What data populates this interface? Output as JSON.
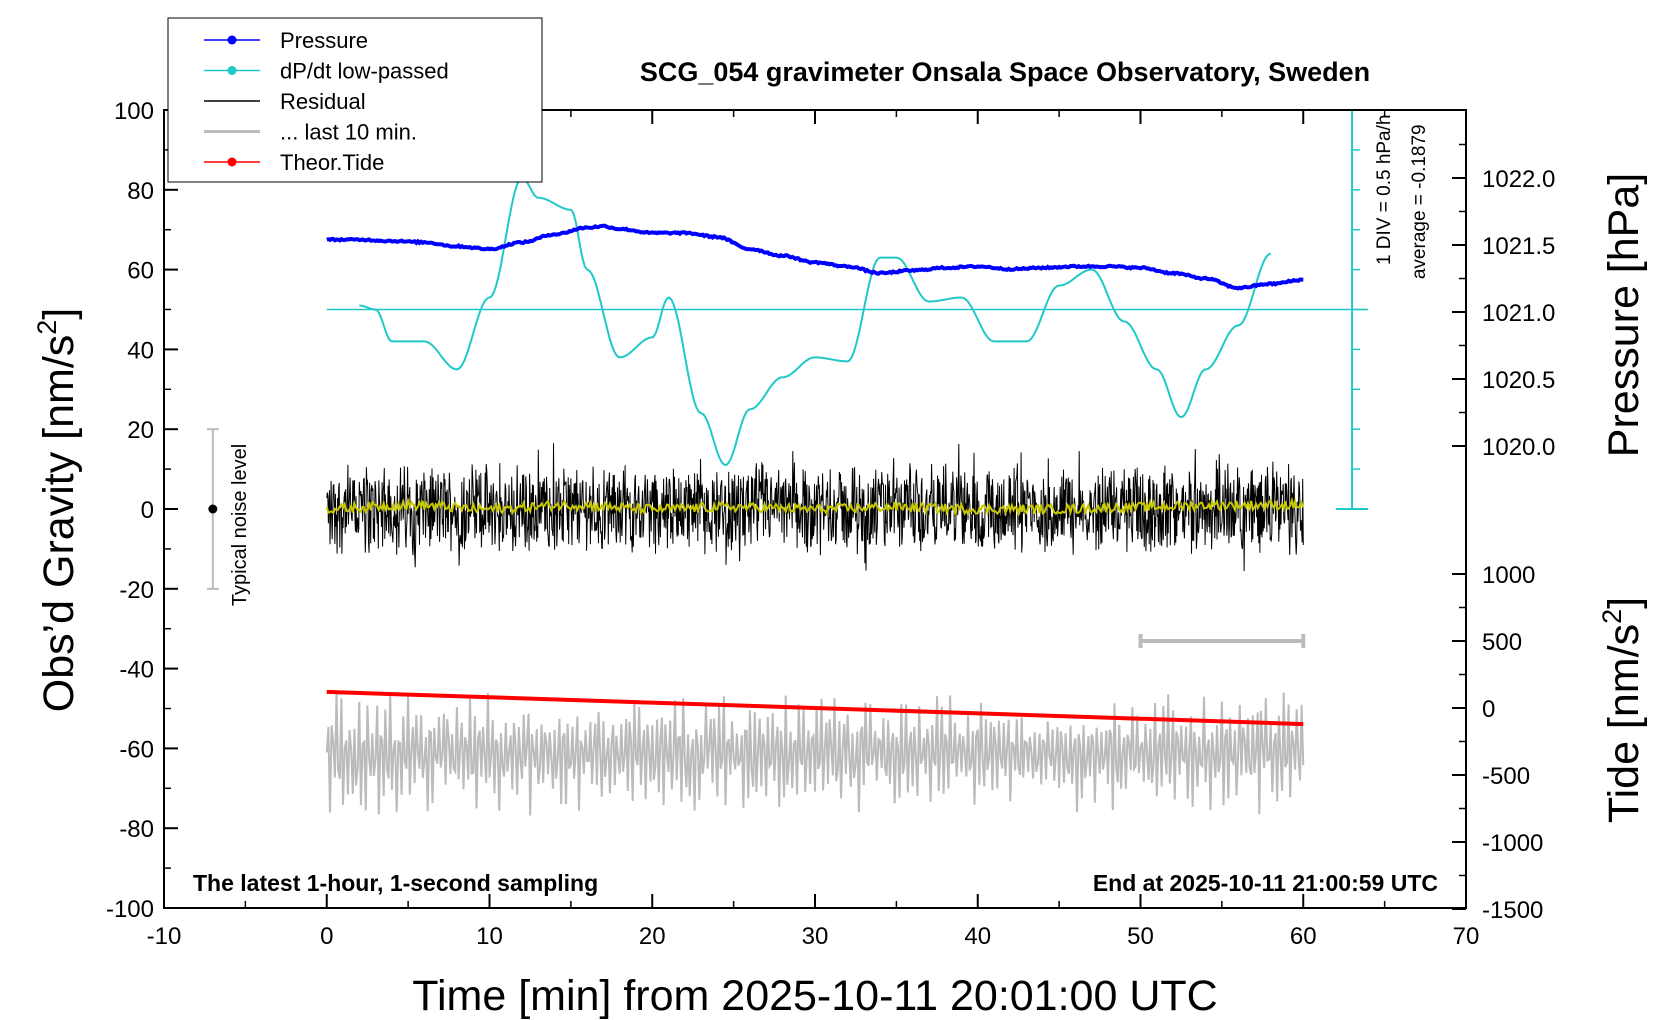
{
  "chart_data": {
    "type": "line",
    "title": "SCG_054 gravimeter Onsala Space Observatory, Sweden",
    "xlabel": "Time [min] from 2025-10-11 20:01:00 UTC",
    "ylabel_left": "Obs’d Gravity [nm/s²]",
    "ylabel_left_main": "Obs’d Gravity [nm/s",
    "ylabel_left_sup": "2",
    "ylabel_left_end": "]",
    "ylabel_right_pressure": "Pressure [hPa]",
    "ylabel_right_tide": "Tide [nm/s²]",
    "ylabel_right_tide_main": "Tide [nm/s",
    "ylabel_right_tide_sup": "2",
    "ylabel_right_tide_end": "]",
    "xlim": [
      -10,
      70
    ],
    "ylim_left": [
      -100,
      100
    ],
    "ylim_pressure": [
      1019.5,
      1022.5
    ],
    "ylim_tide": [
      -1500,
      1500
    ],
    "x_ticks": [
      "-10",
      "0",
      "10",
      "20",
      "30",
      "40",
      "50",
      "60",
      "70"
    ],
    "y_ticks_left": [
      "100",
      "80",
      "60",
      "40",
      "20",
      "0",
      "-20",
      "-40",
      "-60",
      "-80",
      "-100"
    ],
    "y_ticks_pressure": [
      "1022.0",
      "1021.5",
      "1021.0",
      "1020.5",
      "1020.0"
    ],
    "y_ticks_tide": [
      "1000",
      "500",
      "0",
      "-500",
      "-1000",
      "-1500"
    ],
    "legend": {
      "position": "top-left",
      "entries": [
        {
          "label": "Pressure",
          "color": "#0000ff",
          "marker": true
        },
        {
          "label": "dP/dt low-passed",
          "color": "#20c8c8",
          "marker": true
        },
        {
          "label": "Residual",
          "color": "#000000",
          "marker": false
        },
        {
          "label": "... last 10 min.",
          "color": "#bbbbbb",
          "marker": false
        },
        {
          "label": "Theor.Tide",
          "color": "#ff0000",
          "marker": true
        }
      ]
    },
    "annotations": {
      "noise_level": "Typical noise level",
      "noise_range": [
        -20,
        20
      ],
      "dpdt_scale": "1 DIV = 0.5 hPa/h",
      "dpdt_average": "average = -0.1879",
      "footer_left": "The latest 1-hour, 1-second sampling",
      "footer_right": "End at 2025-10-11 21:00:59 UTC",
      "last10_bar_x": [
        50,
        60
      ]
    },
    "series": [
      {
        "name": "Pressure",
        "color": "#0000ff",
        "axis": "pressure",
        "x": [
          0,
          2,
          4,
          6,
          8,
          10,
          12,
          14,
          16,
          17,
          18,
          20,
          22,
          24,
          26,
          28,
          30,
          32,
          34,
          36,
          38,
          40,
          42,
          44,
          46,
          48,
          50,
          52,
          54,
          56,
          58,
          60
        ],
        "values": [
          1021.54,
          1021.54,
          1021.53,
          1021.52,
          1021.49,
          1021.47,
          1021.52,
          1021.58,
          1021.63,
          1021.64,
          1021.62,
          1021.59,
          1021.59,
          1021.56,
          1021.47,
          1021.42,
          1021.37,
          1021.34,
          1021.29,
          1021.31,
          1021.33,
          1021.34,
          1021.32,
          1021.33,
          1021.34,
          1021.34,
          1021.33,
          1021.29,
          1021.25,
          1021.18,
          1021.21,
          1021.24
        ]
      },
      {
        "name": "dP/dt low-passed",
        "color": "#20c8c8",
        "axis": "left",
        "x": [
          2,
          3,
          4,
          6,
          8,
          10,
          12,
          13,
          15,
          16,
          18,
          20,
          21,
          23,
          24.5,
          26,
          28,
          30,
          32,
          34,
          35,
          37,
          39,
          41,
          43,
          45,
          47,
          49,
          51,
          52.5,
          54,
          56,
          58
        ],
        "values": [
          51,
          50,
          42,
          42,
          35,
          53,
          83,
          78,
          75,
          60,
          38,
          43,
          53,
          24,
          11,
          25,
          33,
          38,
          37,
          63,
          63,
          52,
          53,
          42,
          42,
          56,
          60,
          47,
          35,
          23,
          35,
          46,
          64
        ]
      },
      {
        "name": "Residual",
        "color": "#000000",
        "axis": "left",
        "x_range": [
          0,
          60
        ],
        "envelope": [
          -22,
          22
        ]
      },
      {
        "name": "Residual (low-passed)",
        "color": "#c8c800",
        "axis": "left",
        "x": [
          0,
          5,
          10,
          15,
          20,
          25,
          30,
          35,
          40,
          45,
          50,
          55,
          60
        ],
        "values": [
          0,
          1,
          0,
          1,
          0,
          0.5,
          0,
          0.5,
          0,
          0,
          0.5,
          1,
          1
        ]
      },
      {
        "name": "... last 10 min.",
        "color": "#bbbbbb",
        "axis": "left",
        "x_range": [
          0,
          60
        ],
        "center": -61,
        "envelope": [
          -81,
          -43
        ]
      },
      {
        "name": "Theor.Tide",
        "color": "#ff0000",
        "axis": "tide",
        "x": [
          0,
          60
        ],
        "values": [
          120,
          -120
        ]
      }
    ]
  }
}
